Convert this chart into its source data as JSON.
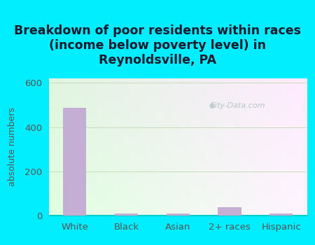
{
  "title": "Breakdown of poor residents within races\n(income below poverty level) in\nReynoldsville, PA",
  "categories": [
    "White",
    "Black",
    "Asian",
    "2+ races",
    "Hispanic"
  ],
  "values": [
    487,
    8,
    8,
    38,
    8
  ],
  "bar_color": "#c4aed4",
  "ylabel": "absolute numbers",
  "ylim": [
    0,
    620
  ],
  "yticks": [
    0,
    200,
    400,
    600
  ],
  "background_outer": "#00eeff",
  "watermark": "City-Data.com",
  "title_fontsize": 12.5,
  "label_fontsize": 9.5,
  "ylabel_fontsize": 9,
  "tick_color": "#555555",
  "title_color": "#1a1a2e"
}
